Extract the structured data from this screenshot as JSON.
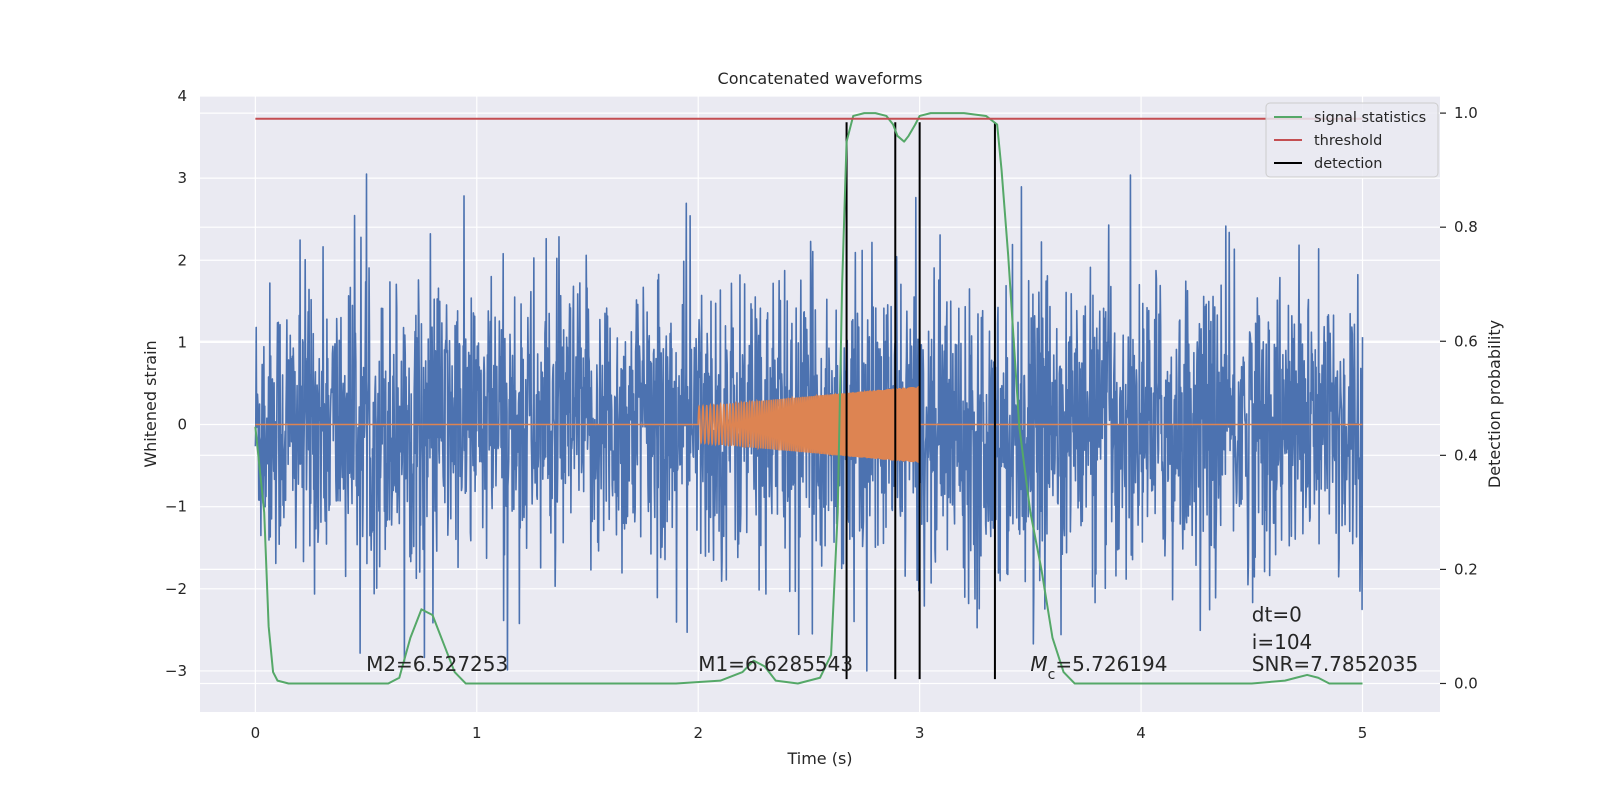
{
  "chart_data": {
    "type": "line",
    "title": "Concatenated waveforms",
    "xlabel": "Time (s)",
    "ylabel": "Whitened strain",
    "y2label": "Detection probability",
    "xlim": [
      -0.25,
      5.35
    ],
    "ylim": [
      -3.5,
      4.0
    ],
    "y2lim": [
      -0.05,
      1.03
    ],
    "xticks": [
      0,
      1,
      2,
      3,
      4,
      5
    ],
    "yticks": [
      -3,
      -2,
      -1,
      0,
      1,
      2,
      3,
      4
    ],
    "y2ticks": [
      "0.0",
      "0.2",
      "0.4",
      "0.6",
      "0.8",
      "1.0"
    ],
    "grid": true,
    "legend_position": "upper-right",
    "legend": [
      {
        "label": "signal statistics",
        "color": "#55a868"
      },
      {
        "label": "threshold",
        "color": "#c44e52"
      },
      {
        "label": "detection",
        "color": "#000000"
      }
    ],
    "series": [
      {
        "kind": "noise",
        "color": "#4c72b0",
        "x_range": [
          0,
          5
        ],
        "amplitude_range": [
          -3.0,
          3.05
        ],
        "typical_envelope": [
          -1.8,
          2.3
        ]
      },
      {
        "kind": "chirp",
        "color": "#dd8452",
        "x_range": [
          2.0,
          3.0
        ],
        "amplitude_start": 0.22,
        "amplitude_end": 0.47
      },
      {
        "name": "signal statistics",
        "axis": "right",
        "color": "#55a868",
        "x": [
          0,
          0.04,
          0.06,
          0.08,
          0.1,
          0.15,
          0.3,
          0.5,
          0.6,
          0.65,
          0.7,
          0.75,
          0.8,
          0.85,
          0.9,
          0.95,
          1.0,
          1.3,
          1.6,
          1.9,
          2.1,
          2.2,
          2.25,
          2.3,
          2.35,
          2.45,
          2.55,
          2.6,
          2.63,
          2.65,
          2.67,
          2.7,
          2.75,
          2.8,
          2.85,
          2.88,
          2.9,
          2.93,
          2.95,
          2.98,
          3.0,
          3.05,
          3.2,
          3.3,
          3.35,
          3.37,
          3.4,
          3.45,
          3.5,
          3.55,
          3.6,
          3.65,
          3.7,
          4.0,
          4.5,
          4.65,
          4.7,
          4.75,
          4.8,
          4.85,
          5.0
        ],
        "y": [
          0.45,
          0.3,
          0.1,
          0.02,
          0.005,
          0.0,
          0.0,
          0.0,
          0.0,
          0.01,
          0.08,
          0.13,
          0.12,
          0.07,
          0.02,
          0.0,
          0.0,
          0.0,
          0.0,
          0.0,
          0.005,
          0.02,
          0.04,
          0.03,
          0.005,
          0.0,
          0.01,
          0.05,
          0.3,
          0.7,
          0.95,
          0.995,
          1.0,
          1.0,
          0.995,
          0.98,
          0.96,
          0.95,
          0.96,
          0.98,
          0.995,
          1.0,
          1.0,
          0.995,
          0.98,
          0.9,
          0.75,
          0.45,
          0.3,
          0.2,
          0.08,
          0.02,
          0.0,
          0.0,
          0.0,
          0.005,
          0.01,
          0.015,
          0.01,
          0.0,
          0.0
        ]
      },
      {
        "name": "threshold",
        "axis": "right",
        "color": "#c44e52",
        "x": [
          0,
          5
        ],
        "y": [
          0.99,
          0.99
        ]
      },
      {
        "name": "detection",
        "axis": "left",
        "color": "#000000",
        "type": "vlines",
        "x": [
          2.67,
          2.89,
          3.0,
          3.34
        ],
        "y_range": [
          -3.1,
          3.68
        ]
      }
    ],
    "annotations": [
      {
        "text": "M2=6.527253",
        "x": 0.5,
        "y": -3.0
      },
      {
        "text": "M1=6.6285543",
        "x": 2.0,
        "y": -3.0
      },
      {
        "text_main": "M",
        "text_sub": "c",
        "text_rest": "=5.726194",
        "x": 3.5,
        "y": -3.0
      },
      {
        "text": "SNR=7.7852035",
        "x": 4.5,
        "y": -3.0
      },
      {
        "text": "i=104",
        "x": 4.5,
        "y": -2.73
      },
      {
        "text": "dt=0",
        "x": 4.5,
        "y": -2.4
      }
    ]
  }
}
